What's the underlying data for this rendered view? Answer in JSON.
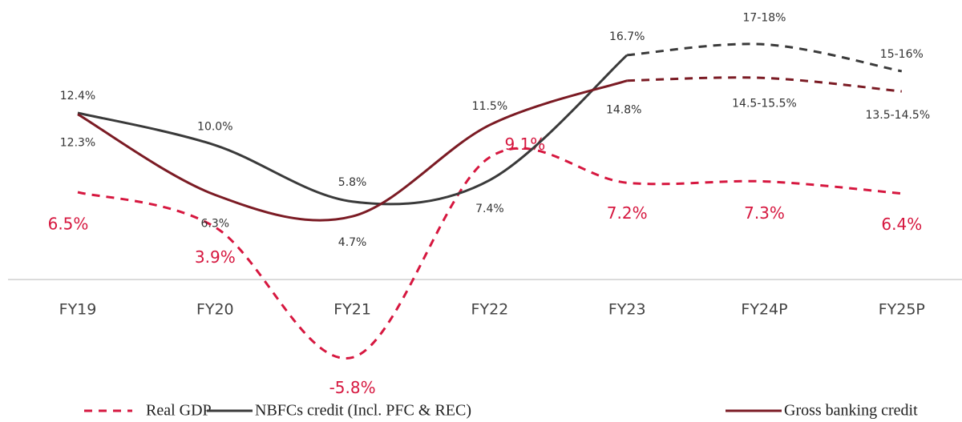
{
  "chart_data": {
    "type": "line",
    "categories": [
      "FY19",
      "FY20",
      "FY21",
      "FY22",
      "FY23",
      "FY24P",
      "FY25P"
    ],
    "ylim": [
      -10.6,
      20.8
    ],
    "series": [
      {
        "name": "Real GDP",
        "color": "#d6173f",
        "style": "dashed",
        "values": [
          6.5,
          3.9,
          -5.8,
          9.1,
          7.2,
          7.3,
          6.4
        ],
        "value_labels": [
          "6.5%",
          "3.9%",
          "-5.8%",
          "9.1%",
          "7.2%",
          "7.3%",
          "6.4%"
        ]
      },
      {
        "name": "NBFCs credit (Incl. PFC & REC)",
        "color": "#3a3a3a",
        "style": "solid",
        "dashed_from": 4,
        "values": [
          12.4,
          10.0,
          5.8,
          7.4,
          16.7,
          17.5,
          15.5
        ],
        "value_labels": [
          "12.4%",
          "10.0%",
          "5.8%",
          "7.4%",
          "16.7%",
          "17-18%",
          "15-16%"
        ]
      },
      {
        "name": "Gross banking credit",
        "color": "#7b1b24",
        "style": "solid",
        "dashed_from": 4,
        "values": [
          12.3,
          6.3,
          4.7,
          11.5,
          14.8,
          15.0,
          14.0
        ],
        "value_labels": [
          "12.3%",
          "6.3%",
          "4.7%",
          "11.5%",
          "14.8%",
          "14.5-15.5%",
          "13.5-14.5%"
        ]
      }
    ]
  }
}
